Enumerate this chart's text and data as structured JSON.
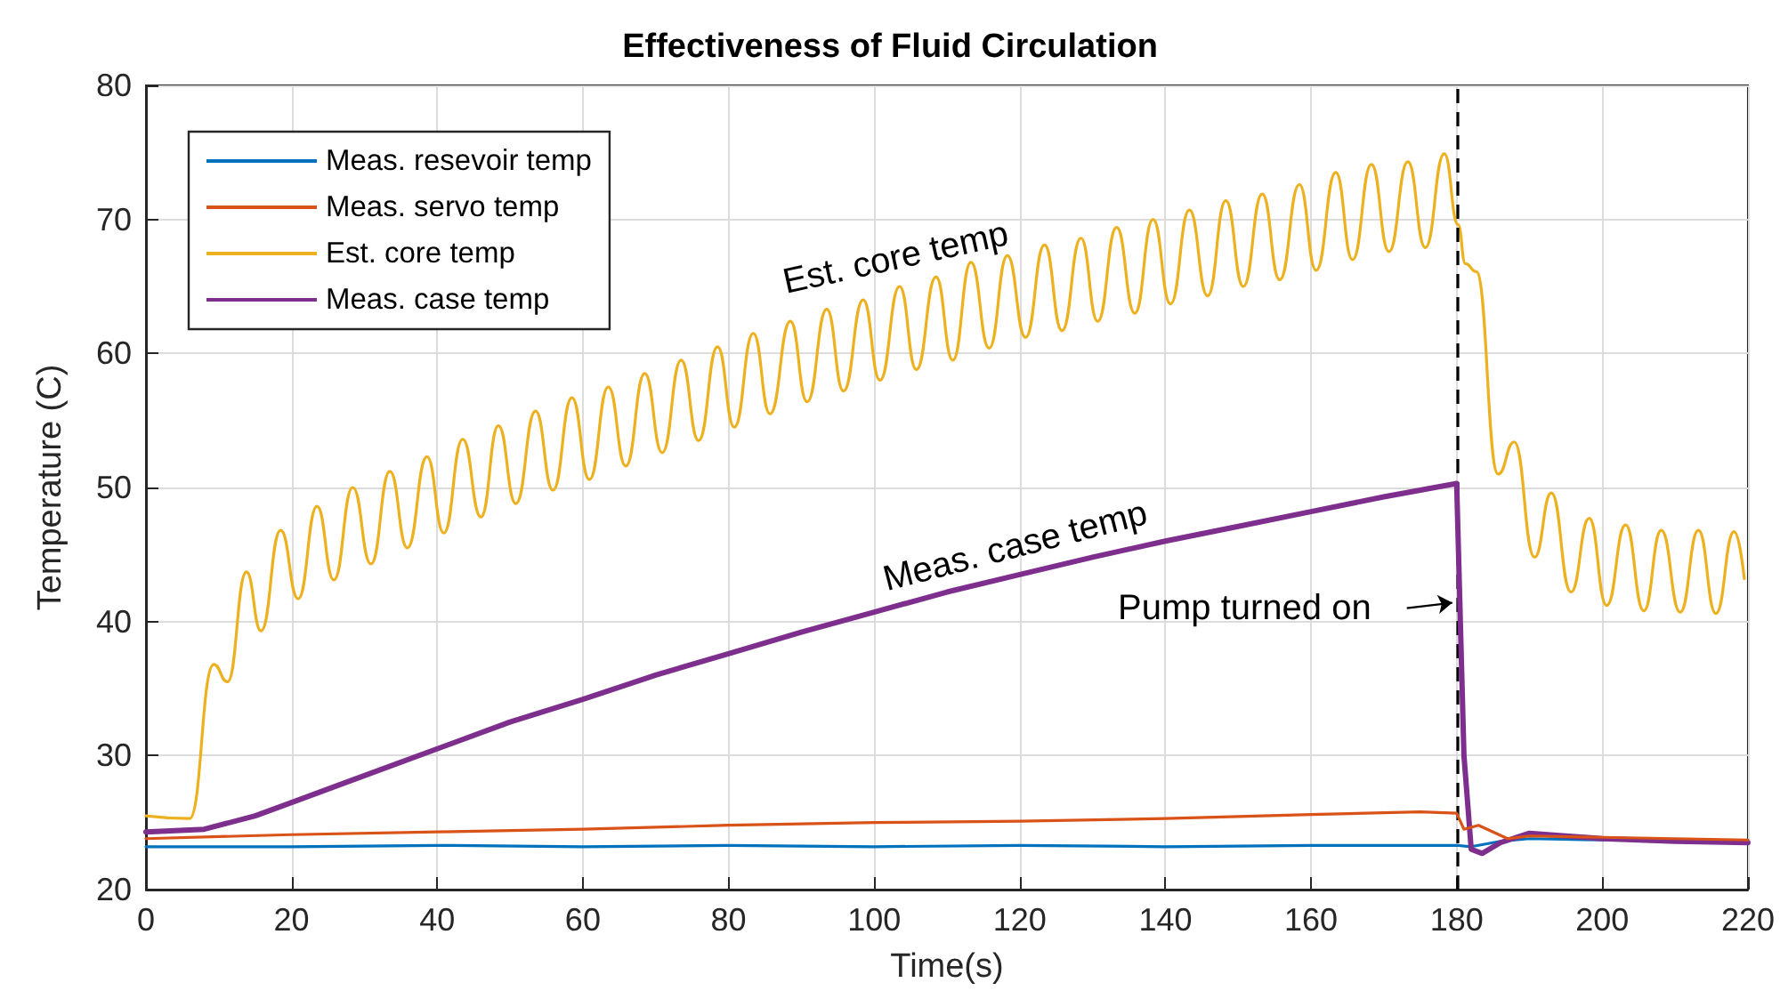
{
  "chart_data": {
    "type": "line",
    "title": "Effectiveness of Fluid Circulation",
    "xlabel": "Time(s)",
    "ylabel": "Temperature (C)",
    "xlim": [
      0,
      220
    ],
    "xticks": [
      0,
      20,
      40,
      60,
      80,
      100,
      120,
      140,
      160,
      180,
      200,
      220
    ],
    "ylim": [
      20,
      80
    ],
    "yticks": [
      20,
      30,
      40,
      50,
      60,
      70,
      80
    ],
    "grid": true,
    "legend": "top left",
    "marker": "none",
    "line_style": "solid",
    "series": [
      {
        "name": "Meas. resevoir temp",
        "color": "#0072bd",
        "x": [
          0,
          20,
          40,
          60,
          80,
          100,
          120,
          140,
          160,
          180,
          182,
          186,
          190,
          200,
          210,
          220
        ],
        "values": [
          23.2,
          23.2,
          23.3,
          23.2,
          23.3,
          23.2,
          23.3,
          23.2,
          23.3,
          23.3,
          23.2,
          23.6,
          23.8,
          23.7,
          23.7,
          23.6
        ]
      },
      {
        "name": "Meas. servo temp",
        "color": "#d95319",
        "x": [
          0,
          20,
          40,
          60,
          80,
          100,
          120,
          140,
          160,
          175,
          180,
          181,
          183,
          187,
          190,
          200,
          210,
          220
        ],
        "values": [
          23.8,
          24.1,
          24.3,
          24.5,
          24.8,
          25,
          25.1,
          25.3,
          25.6,
          25.8,
          25.7,
          24.5,
          24.8,
          23.8,
          24,
          23.9,
          23.8,
          23.7
        ]
      },
      {
        "name": "Est. core temp",
        "color": "#edb120",
        "x": [
          0,
          6,
          9.3,
          11.2,
          13.8,
          15.8,
          18.5,
          20.9,
          23.5,
          25.8,
          28.4,
          30.9,
          33.5,
          35.9,
          38.6,
          40.9,
          43.5,
          46,
          48.4,
          50.8,
          53.5,
          55.9,
          58.5,
          60.9,
          63.5,
          65.9,
          68.5,
          70.9,
          73.5,
          75.9,
          78.5,
          80.8,
          83.4,
          85.7,
          88.5,
          90.8,
          93.5,
          95.8,
          98.5,
          100.8,
          103.5,
          105.8,
          108.5,
          110.8,
          113.3,
          115.8,
          118.3,
          120.8,
          123.4,
          125.8,
          128.4,
          130.7,
          133.3,
          135.8,
          138.3,
          140.7,
          143.3,
          145.8,
          148.3,
          150.7,
          153.3,
          155.7,
          158.4,
          160.7,
          163.4,
          165.7,
          168.3,
          170.7,
          173.3,
          175.7,
          178.3,
          180.2,
          181.2,
          182.7,
          185.7,
          187.9,
          190.7,
          193,
          195.7,
          198.2,
          200.6,
          203.2,
          205.7,
          208.1,
          210.7,
          213.2,
          215.6,
          218.1,
          219.5
        ],
        "values": [
          25.5,
          25.3,
          36.8,
          35.5,
          43.7,
          39.3,
          46.8,
          41.7,
          48.6,
          43.1,
          50,
          44.3,
          51.2,
          45.5,
          52.3,
          46.6,
          53.6,
          47.8,
          54.6,
          48.8,
          55.7,
          49.8,
          56.7,
          50.6,
          57.5,
          51.6,
          58.5,
          52.6,
          59.5,
          53.5,
          60.5,
          54.5,
          61.5,
          55.5,
          62.4,
          56.4,
          63.3,
          57.2,
          64,
          58,
          65,
          58.8,
          65.7,
          59.5,
          66.8,
          60.4,
          67.3,
          61.2,
          68.1,
          61.7,
          68.6,
          62.4,
          69.4,
          63,
          70,
          63.7,
          70.7,
          64.3,
          71.4,
          65,
          71.9,
          65.5,
          72.6,
          66.2,
          73.5,
          67,
          74.1,
          67.6,
          74.3,
          67.9,
          74.9,
          69.6,
          66.7,
          66.1,
          51,
          53.4,
          44.8,
          49.6,
          42.2,
          47.7,
          41.2,
          47.2,
          40.8,
          46.8,
          40.7,
          46.8,
          40.6,
          46.7,
          43.2
        ]
      },
      {
        "name": "Meas. case temp",
        "color": "#7e2f8e",
        "x": [
          0,
          8,
          15,
          20,
          30,
          40,
          50,
          60,
          70,
          80,
          90,
          100,
          110,
          120,
          130,
          140,
          150,
          160,
          170,
          180,
          181,
          182,
          183.5,
          186,
          190,
          200,
          210,
          220
        ],
        "values": [
          24.3,
          24.5,
          25.5,
          26.5,
          28.5,
          30.5,
          32.5,
          34.2,
          36,
          37.6,
          39.2,
          40.7,
          42.2,
          43.5,
          44.8,
          46,
          47.1,
          48.2,
          49.3,
          50.3,
          30,
          23,
          22.7,
          23.5,
          24.2,
          23.8,
          23.6,
          23.5
        ]
      }
    ],
    "ref_lines": [
      {
        "axis": "x",
        "value": 180,
        "label": "Pump turned on",
        "color": "#000000",
        "line_style": "dashed"
      }
    ],
    "annotations": [
      {
        "text": "Est. core temp",
        "x": 103.5,
        "y": 65
      },
      {
        "text": "Meas. case temp",
        "x": 120,
        "y": 43.5
      }
    ]
  }
}
